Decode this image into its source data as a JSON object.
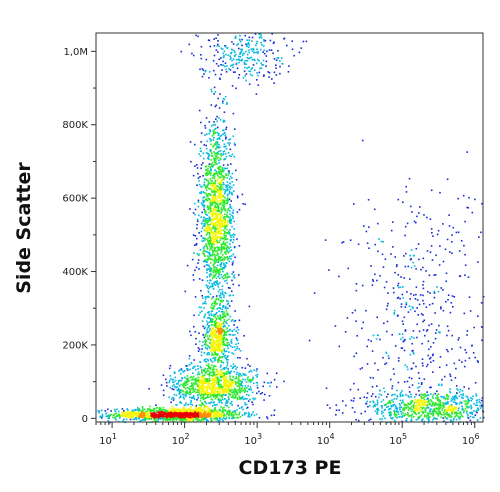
{
  "chart_data": {
    "type": "scatter",
    "title": "",
    "xlabel": "CD173 PE",
    "ylabel": "Side Scatter",
    "x_scale": "log",
    "xlim": [
      6,
      1300000
    ],
    "ylim": [
      -10000,
      1050000
    ],
    "x_ticks": [
      {
        "value": 10,
        "base": "10",
        "exp": "1"
      },
      {
        "value": 100,
        "base": "10",
        "exp": "2"
      },
      {
        "value": 1000,
        "base": "10",
        "exp": "3"
      },
      {
        "value": 10000,
        "base": "10",
        "exp": "4"
      },
      {
        "value": 100000,
        "base": "10",
        "exp": "5"
      },
      {
        "value": 1000000,
        "base": "10",
        "exp": "6"
      }
    ],
    "y_ticks": [
      {
        "value": 0,
        "label": "0"
      },
      {
        "value": 200000,
        "label": "200K"
      },
      {
        "value": 400000,
        "label": "400K"
      },
      {
        "value": 600000,
        "label": "600K"
      },
      {
        "value": 800000,
        "label": "800K"
      },
      {
        "value": 1000000,
        "label": "1,0M"
      }
    ],
    "populations": [
      {
        "center": [
          75,
          12000
        ],
        "spread": [
          0.45,
          9000
        ],
        "count": 1200
      },
      {
        "center": [
          250,
          90000
        ],
        "spread": [
          0.3,
          30000
        ],
        "count": 1000
      },
      {
        "center": [
          280,
          220000
        ],
        "spread": [
          0.12,
          40000
        ],
        "count": 500
      },
      {
        "center": [
          270,
          540000
        ],
        "spread": [
          0.12,
          130000
        ],
        "count": 1600
      },
      {
        "center": [
          250000,
          30000
        ],
        "spread": [
          0.45,
          25000
        ],
        "count": 800
      },
      {
        "center": [
          600,
          1000000
        ],
        "spread": [
          0.3,
          40000
        ],
        "count": 300
      },
      {
        "center": [
          150000,
          250000
        ],
        "spread": [
          0.5,
          200000
        ],
        "count": 500
      }
    ],
    "color_scale": [
      "#1a2bd6",
      "#00b8e0",
      "#2ee82e",
      "#f5f500",
      "#ff8c00",
      "#e80000"
    ],
    "grid": false,
    "legend": "none"
  }
}
